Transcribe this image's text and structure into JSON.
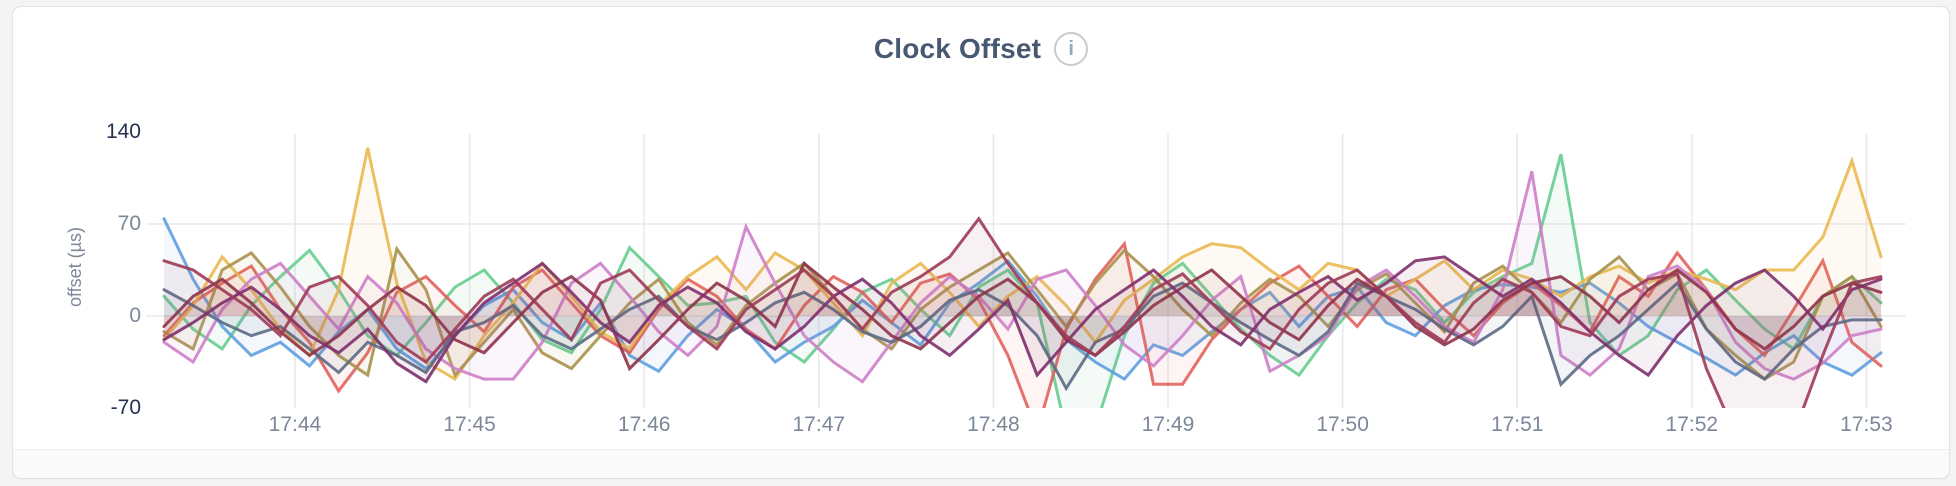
{
  "header": {
    "title": "Clock Offset",
    "info_icon_glyph": "i"
  },
  "colors": {
    "page_background": "#f4f4f6",
    "card_background": "#ffffff",
    "card_border": "#e2e2e5",
    "title_text": "#475872",
    "gridline": "#e8e8ea",
    "tick_dark": "#24314f",
    "tick_light": "#7c8799"
  },
  "chart_data": {
    "type": "line",
    "title": "Clock Offset",
    "xlabel": "",
    "ylabel": "offset (µs)",
    "ylim": [
      -70,
      140
    ],
    "grid": true,
    "legend": false,
    "points_per_series": 60,
    "x_tick_labels": [
      "17:44",
      "17:45",
      "17:46",
      "17:47",
      "17:48",
      "17:49",
      "17:50",
      "17:51",
      "17:52",
      "17:53"
    ],
    "x_tick_indices": [
      4.5,
      10.5,
      16.5,
      22.5,
      28.5,
      34.5,
      40.5,
      46.5,
      52.5,
      58.5
    ],
    "y_ticks": [
      {
        "label": "140",
        "value": 140,
        "emphasis": true,
        "grid_line": false
      },
      {
        "label": "70",
        "value": 70,
        "emphasis": false,
        "grid_line": true
      },
      {
        "label": "0",
        "value": 0,
        "emphasis": false,
        "grid_line": true
      },
      {
        "label": "-70",
        "value": -70,
        "emphasis": true,
        "grid_line": false
      }
    ],
    "series": [
      {
        "name": "green",
        "color": "#67cd90",
        "values": [
          15,
          -10,
          -25,
          8,
          30,
          50,
          20,
          -15,
          -30,
          -5,
          22,
          35,
          10,
          -18,
          -28,
          5,
          52,
          30,
          8,
          10,
          15,
          -20,
          -35,
          -10,
          18,
          28,
          5,
          -15,
          22,
          35,
          10,
          -88,
          -85,
          -15,
          25,
          40,
          15,
          -10,
          -30,
          -45,
          -15,
          10,
          28,
          20,
          -5,
          18,
          30,
          40,
          123,
          -5,
          -30,
          -15,
          20,
          35,
          12,
          -10,
          -25,
          15,
          30,
          10
        ]
      },
      {
        "name": "blue",
        "color": "#5f9ee0",
        "values": [
          74,
          28,
          -8,
          -30,
          -20,
          -38,
          -12,
          5,
          -25,
          -40,
          -15,
          8,
          20,
          -5,
          -18,
          10,
          -30,
          -42,
          -15,
          5,
          -10,
          -35,
          -20,
          -8,
          12,
          -5,
          -22,
          10,
          25,
          42,
          15,
          -18,
          -35,
          -48,
          -22,
          -30,
          -12,
          5,
          18,
          -8,
          15,
          22,
          -5,
          -15,
          8,
          20,
          24,
          22,
          18,
          25,
          10,
          -8,
          -20,
          -32,
          -45,
          -28,
          -15,
          -35,
          -45,
          -28
        ]
      },
      {
        "name": "coral",
        "color": "#e2605c",
        "values": [
          -15,
          10,
          25,
          38,
          5,
          -20,
          -57,
          -28,
          18,
          30,
          8,
          -12,
          22,
          35,
          10,
          -15,
          -28,
          5,
          28,
          15,
          -10,
          -25,
          8,
          30,
          18,
          -5,
          25,
          32,
          12,
          -30,
          -88,
          -10,
          28,
          55,
          -52,
          -52,
          -18,
          5,
          25,
          38,
          15,
          -8,
          20,
          28,
          5,
          -15,
          10,
          25,
          8,
          -12,
          30,
          15,
          48,
          20,
          -10,
          -30,
          5,
          42,
          -20,
          -38
        ]
      },
      {
        "name": "gold",
        "color": "#eab950",
        "values": [
          -18,
          8,
          45,
          20,
          -10,
          -30,
          20,
          128,
          25,
          -35,
          -48,
          -15,
          10,
          40,
          15,
          -12,
          -25,
          8,
          30,
          45,
          20,
          48,
          35,
          10,
          -15,
          25,
          40,
          18,
          -8,
          15,
          30,
          8,
          -20,
          12,
          28,
          45,
          55,
          52,
          35,
          20,
          40,
          35,
          15,
          28,
          42,
          20,
          35,
          28,
          15,
          30,
          38,
          25,
          35,
          28,
          20,
          35,
          35,
          60,
          118,
          45
        ]
      },
      {
        "name": "khaki",
        "color": "#a8914d",
        "values": [
          -12,
          -25,
          35,
          48,
          22,
          -8,
          -30,
          -45,
          51,
          20,
          -45,
          -20,
          5,
          -28,
          -40,
          -15,
          10,
          28,
          -5,
          -22,
          8,
          25,
          40,
          15,
          -10,
          -25,
          5,
          22,
          35,
          48,
          20,
          -8,
          25,
          50,
          30,
          5,
          -15,
          10,
          28,
          15,
          -8,
          20,
          32,
          10,
          -12,
          25,
          38,
          18,
          -5,
          28,
          45,
          20,
          32,
          -10,
          -30,
          -48,
          -35,
          15,
          30,
          -8
        ]
      },
      {
        "name": "orchid",
        "color": "#cd7fc9",
        "values": [
          -20,
          -35,
          5,
          28,
          40,
          15,
          -10,
          30,
          10,
          -25,
          -40,
          -48,
          -48,
          -20,
          25,
          40,
          15,
          -12,
          -30,
          -8,
          68,
          25,
          -15,
          -35,
          -50,
          -20,
          10,
          30,
          15,
          -10,
          28,
          35,
          8,
          -22,
          -38,
          -15,
          12,
          30,
          -42,
          -30,
          -15,
          22,
          35,
          15,
          -8,
          -20,
          20,
          110,
          -30,
          -45,
          -25,
          30,
          38,
          20,
          -20,
          -40,
          -48,
          -36,
          -15,
          -10
        ]
      },
      {
        "name": "slate",
        "color": "#5c6a84",
        "values": [
          20,
          8,
          -5,
          -15,
          -8,
          -25,
          -43,
          -20,
          -30,
          -43,
          -12,
          -5,
          8,
          -15,
          -25,
          -10,
          5,
          15,
          -8,
          -18,
          -5,
          10,
          18,
          5,
          -12,
          -20,
          -8,
          12,
          20,
          8,
          -15,
          -55,
          -20,
          -10,
          15,
          25,
          10,
          -5,
          -18,
          -30,
          -12,
          25,
          15,
          5,
          -10,
          -22,
          -8,
          15,
          -52,
          -30,
          -15,
          5,
          25,
          -10,
          -35,
          -48,
          -25,
          -8,
          -3,
          -3
        ]
      },
      {
        "name": "wine",
        "color": "#8e3349",
        "values": [
          -8,
          15,
          28,
          10,
          -12,
          -30,
          -15,
          5,
          22,
          8,
          -18,
          -28,
          -5,
          18,
          30,
          12,
          -40,
          -18,
          5,
          25,
          12,
          -8,
          40,
          22,
          5,
          -15,
          -25,
          -5,
          15,
          28,
          10,
          -18,
          -30,
          -12,
          8,
          22,
          35,
          15,
          -5,
          -18,
          8,
          28,
          15,
          -8,
          -22,
          -10,
          12,
          25,
          30,
          15,
          -5,
          20,
          35,
          18,
          -10,
          -25,
          -8,
          15,
          25,
          18
        ]
      },
      {
        "name": "plum",
        "color": "#7e2f6d",
        "values": [
          -18,
          -5,
          10,
          22,
          5,
          -15,
          -28,
          -10,
          -36,
          -50,
          -15,
          10,
          25,
          40,
          18,
          -5,
          -20,
          8,
          22,
          10,
          -12,
          -25,
          -8,
          15,
          28,
          10,
          -15,
          -30,
          -10,
          12,
          -45,
          -20,
          5,
          20,
          35,
          15,
          -8,
          -22,
          5,
          18,
          30,
          12,
          25,
          42,
          45,
          30,
          15,
          28,
          10,
          -12,
          -30,
          -45,
          -15,
          8,
          25,
          35,
          15,
          -10,
          20,
          28
        ]
      },
      {
        "name": "maroon",
        "color": "#9d3a56",
        "values": [
          42,
          35,
          20,
          5,
          -15,
          22,
          30,
          8,
          -20,
          -35,
          -10,
          15,
          28,
          5,
          -18,
          25,
          35,
          12,
          -8,
          -25,
          5,
          20,
          35,
          15,
          -10,
          18,
          30,
          45,
          74,
          40,
          10,
          -15,
          -30,
          -8,
          20,
          32,
          10,
          -12,
          -25,
          5,
          25,
          35,
          15,
          -5,
          -20,
          10,
          28,
          18,
          -8,
          -15,
          15,
          28,
          32,
          -40,
          -90,
          -95,
          -90,
          -30,
          25,
          30
        ]
      }
    ]
  }
}
